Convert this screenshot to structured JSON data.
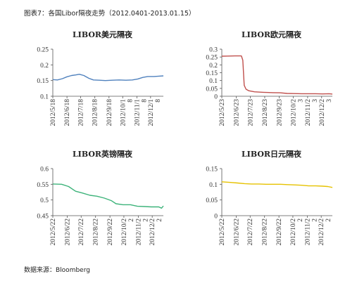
{
  "figure_title": "图表7：各国Libor隔夜走势（2012.0401-2013.01.15）",
  "source": "数据来源：Bloomberg",
  "chart_data": [
    {
      "type": "line",
      "title": "LIBOR美元隔夜",
      "color": "#4f81bd",
      "ylim": [
        0.1,
        0.25
      ],
      "yticks": [
        "0.1",
        "0.15",
        "0.2",
        "0.25"
      ],
      "xlim": [
        "2012-05-18",
        "2013-01-15"
      ],
      "xticks": [
        {
          "date": "2012-05-18",
          "label": [
            "2012/5/18"
          ]
        },
        {
          "date": "2012-06-18",
          "label": [
            "2012/6/18"
          ]
        },
        {
          "date": "2012-07-18",
          "label": [
            "2012/7/18"
          ]
        },
        {
          "date": "2012-08-18",
          "label": [
            "2012/8/18"
          ]
        },
        {
          "date": "2012-09-18",
          "label": [
            "2012/9/18"
          ]
        },
        {
          "date": "2012-10-18",
          "label": [
            "2012/10/1",
            "8"
          ]
        },
        {
          "date": "2012-11-18",
          "label": [
            "2012/11/1",
            "8"
          ]
        },
        {
          "date": "2012-12-18",
          "label": [
            "2012/12/1",
            "8"
          ]
        }
      ],
      "series": [
        {
          "points": [
            [
              "2012-05-18",
              0.153
            ],
            [
              "2012-05-28",
              0.152
            ],
            [
              "2012-06-08",
              0.156
            ],
            [
              "2012-06-18",
              0.162
            ],
            [
              "2012-06-28",
              0.166
            ],
            [
              "2012-07-08",
              0.168
            ],
            [
              "2012-07-15",
              0.17
            ],
            [
              "2012-07-25",
              0.166
            ],
            [
              "2012-08-05",
              0.157
            ],
            [
              "2012-08-15",
              0.152
            ],
            [
              "2012-08-28",
              0.151
            ],
            [
              "2012-09-10",
              0.15
            ],
            [
              "2012-09-25",
              0.151
            ],
            [
              "2012-10-10",
              0.152
            ],
            [
              "2012-10-25",
              0.151
            ],
            [
              "2012-11-08",
              0.152
            ],
            [
              "2012-11-20",
              0.155
            ],
            [
              "2012-12-01",
              0.16
            ],
            [
              "2012-12-12",
              0.163
            ],
            [
              "2012-12-25",
              0.163
            ],
            [
              "2013-01-05",
              0.164
            ],
            [
              "2013-01-15",
              0.165
            ]
          ]
        }
      ]
    },
    {
      "type": "line",
      "title": "LIBOR欧元隔夜",
      "color": "#c0504d",
      "ylim": [
        0,
        0.3
      ],
      "yticks": [
        "0",
        "0.05",
        "0.1",
        "0.15",
        "0.2",
        "0.25",
        "0.3"
      ],
      "xlim": [
        "2012-05-23",
        "2013-01-15"
      ],
      "xticks": [
        {
          "date": "2012-05-23",
          "label": [
            "2012/5/23"
          ]
        },
        {
          "date": "2012-06-23",
          "label": [
            "2012/6/23"
          ]
        },
        {
          "date": "2012-07-23",
          "label": [
            "2012/7/23"
          ]
        },
        {
          "date": "2012-08-23",
          "label": [
            "2012/8/23"
          ]
        },
        {
          "date": "2012-09-23",
          "label": [
            "2012/9/23"
          ]
        },
        {
          "date": "2012-10-23",
          "label": [
            "2012/10/2",
            "3"
          ]
        },
        {
          "date": "2012-11-23",
          "label": [
            "2012/11/2",
            "3"
          ]
        },
        {
          "date": "2012-12-23",
          "label": [
            "2012/12/2",
            "3"
          ]
        }
      ],
      "series": [
        {
          "points": [
            [
              "2012-05-23",
              0.255
            ],
            [
              "2012-06-05",
              0.256
            ],
            [
              "2012-06-20",
              0.257
            ],
            [
              "2012-07-04",
              0.257
            ],
            [
              "2012-07-07",
              0.23
            ],
            [
              "2012-07-10",
              0.07
            ],
            [
              "2012-07-14",
              0.045
            ],
            [
              "2012-07-20",
              0.035
            ],
            [
              "2012-08-01",
              0.028
            ],
            [
              "2012-08-20",
              0.025
            ],
            [
              "2012-09-10",
              0.023
            ],
            [
              "2012-09-25",
              0.022
            ],
            [
              "2012-10-10",
              0.018
            ],
            [
              "2012-10-25",
              0.017
            ],
            [
              "2012-11-10",
              0.016
            ],
            [
              "2012-11-25",
              0.016
            ],
            [
              "2012-12-10",
              0.016
            ],
            [
              "2012-12-25",
              0.015
            ],
            [
              "2013-01-08",
              0.016
            ],
            [
              "2013-01-15",
              0.014
            ]
          ]
        }
      ]
    },
    {
      "type": "line",
      "title": "LIBOR英镑隔夜",
      "color": "#3db37a",
      "ylim": [
        0.45,
        0.6
      ],
      "yticks": [
        "0.45",
        "0.5",
        "0.55",
        "0.6"
      ],
      "xlim": [
        "2012-05-22",
        "2013-01-15"
      ],
      "xticks": [
        {
          "date": "2012-05-22",
          "label": [
            "2012/5/22"
          ]
        },
        {
          "date": "2012-06-22",
          "label": [
            "2012/6/22"
          ]
        },
        {
          "date": "2012-07-22",
          "label": [
            "2012/7/22"
          ]
        },
        {
          "date": "2012-08-22",
          "label": [
            "2012/8/22"
          ]
        },
        {
          "date": "2012-09-22",
          "label": [
            "2012/9/22"
          ]
        },
        {
          "date": "2012-10-22",
          "label": [
            "2012/10/2",
            "2"
          ]
        },
        {
          "date": "2012-11-22",
          "label": [
            "2012/11/2",
            "2"
          ]
        },
        {
          "date": "2012-12-22",
          "label": [
            "2012/12/2",
            "2"
          ]
        }
      ],
      "series": [
        {
          "points": [
            [
              "2012-05-22",
              0.551
            ],
            [
              "2012-06-10",
              0.55
            ],
            [
              "2012-06-25",
              0.543
            ],
            [
              "2012-07-10",
              0.528
            ],
            [
              "2012-07-25",
              0.522
            ],
            [
              "2012-08-10",
              0.515
            ],
            [
              "2012-08-25",
              0.512
            ],
            [
              "2012-09-10",
              0.506
            ],
            [
              "2012-09-25",
              0.498
            ],
            [
              "2012-10-05",
              0.488
            ],
            [
              "2012-10-20",
              0.485
            ],
            [
              "2012-11-05",
              0.485
            ],
            [
              "2012-11-20",
              0.48
            ],
            [
              "2012-12-05",
              0.479
            ],
            [
              "2012-12-20",
              0.478
            ],
            [
              "2013-01-05",
              0.478
            ],
            [
              "2013-01-11",
              0.474
            ],
            [
              "2013-01-15",
              0.481
            ]
          ]
        }
      ]
    },
    {
      "type": "line",
      "title": "LIBOR日元隔夜",
      "color": "#e6c200",
      "ylim": [
        0,
        0.15
      ],
      "yticks": [
        "0",
        "0.05",
        "0.1",
        "0.15"
      ],
      "xlim": [
        "2012-05-22",
        "2013-01-15"
      ],
      "xticks": [
        {
          "date": "2012-05-22",
          "label": [
            "2012/5/22"
          ]
        },
        {
          "date": "2012-06-22",
          "label": [
            "2012/6/22"
          ]
        },
        {
          "date": "2012-07-22",
          "label": [
            "2012/7/22"
          ]
        },
        {
          "date": "2012-08-22",
          "label": [
            "2012/8/22"
          ]
        },
        {
          "date": "2012-09-22",
          "label": [
            "2012/9/22"
          ]
        },
        {
          "date": "2012-10-22",
          "label": [
            "2012/10/2",
            "2"
          ]
        },
        {
          "date": "2012-11-22",
          "label": [
            "2012/11/2",
            "2"
          ]
        },
        {
          "date": "2012-12-22",
          "label": [
            "2012/12/2",
            "2"
          ]
        }
      ],
      "series": [
        {
          "points": [
            [
              "2012-05-22",
              0.108
            ],
            [
              "2012-06-10",
              0.106
            ],
            [
              "2012-06-25",
              0.104
            ],
            [
              "2012-07-10",
              0.102
            ],
            [
              "2012-07-25",
              0.101
            ],
            [
              "2012-08-10",
              0.101
            ],
            [
              "2012-08-25",
              0.1
            ],
            [
              "2012-09-10",
              0.1
            ],
            [
              "2012-09-25",
              0.1
            ],
            [
              "2012-10-10",
              0.099
            ],
            [
              "2012-10-25",
              0.098
            ],
            [
              "2012-11-10",
              0.097
            ],
            [
              "2012-11-25",
              0.095
            ],
            [
              "2012-12-10",
              0.095
            ],
            [
              "2012-12-25",
              0.094
            ],
            [
              "2013-01-05",
              0.093
            ],
            [
              "2013-01-15",
              0.09
            ]
          ]
        }
      ]
    }
  ]
}
